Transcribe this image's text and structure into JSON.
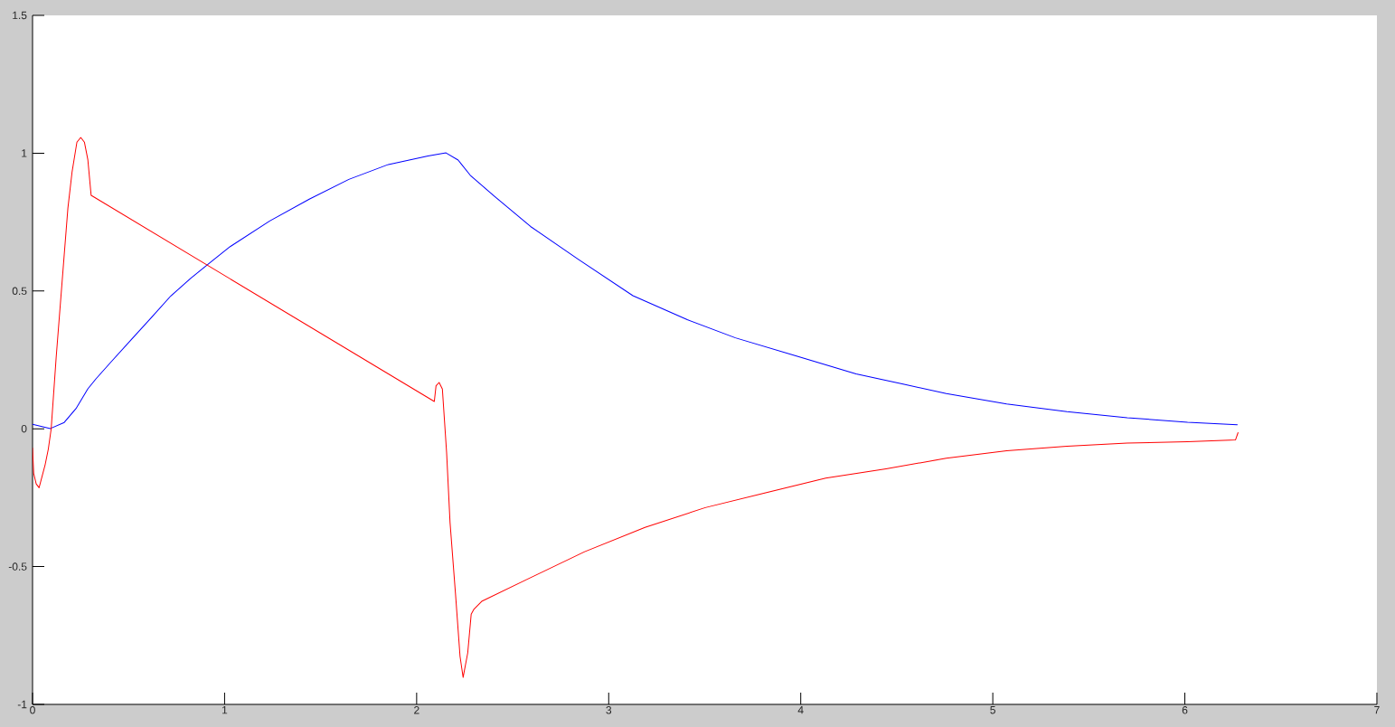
{
  "chart_data": {
    "type": "line",
    "xlim": [
      0,
      7
    ],
    "ylim": [
      -1,
      1.5
    ],
    "xticks": [
      0,
      1,
      2,
      3,
      4,
      5,
      6,
      7
    ],
    "yticks": [
      -1,
      -0.5,
      0,
      0.5,
      1,
      1.5
    ],
    "series": [
      {
        "color": "#0000ff",
        "x": [
          0,
          0.093,
          0.165,
          0.226,
          0.288,
          0.33,
          0.412,
          0.515,
          0.618,
          0.72,
          0.823,
          0.926,
          1.029,
          1.235,
          1.441,
          1.647,
          1.853,
          2.059,
          2.153,
          2.216,
          2.279,
          2.404,
          2.593,
          2.844,
          3.126,
          3.409,
          3.66,
          3.974,
          4.288,
          4.533,
          4.758,
          5.072,
          5.386,
          5.7,
          6.014,
          6.273
        ],
        "values": [
          0.016,
          0.001,
          0.023,
          0.073,
          0.145,
          0.181,
          0.245,
          0.324,
          0.403,
          0.482,
          0.546,
          0.604,
          0.661,
          0.754,
          0.833,
          0.905,
          0.959,
          0.99,
          1.001,
          0.975,
          0.92,
          0.844,
          0.734,
          0.614,
          0.483,
          0.396,
          0.33,
          0.265,
          0.199,
          0.162,
          0.128,
          0.09,
          0.062,
          0.04,
          0.024,
          0.015
        ]
      },
      {
        "color": "#ff0000",
        "x": [
          0,
          0.006,
          0.019,
          0.034,
          0.066,
          0.082,
          0.097,
          0.123,
          0.165,
          0.184,
          0.206,
          0.231,
          0.251,
          0.27,
          0.288,
          0.305,
          2.092,
          2.101,
          2.117,
          2.134,
          2.156,
          2.174,
          2.202,
          2.226,
          2.242,
          2.266,
          2.284,
          2.299,
          2.341,
          2.561,
          2.875,
          3.189,
          3.503,
          3.817,
          4.13,
          4.444,
          4.758,
          5.072,
          5.386,
          5.7,
          6.014,
          6.234,
          6.264,
          6.277
        ],
        "values": [
          -0.07,
          -0.162,
          -0.2,
          -0.214,
          -0.129,
          -0.074,
          0.0,
          0.259,
          0.632,
          0.8,
          0.933,
          1.04,
          1.057,
          1.04,
          0.976,
          0.847,
          0.099,
          0.156,
          0.168,
          0.144,
          -0.086,
          -0.341,
          -0.596,
          -0.826,
          -0.902,
          -0.813,
          -0.673,
          -0.654,
          -0.625,
          -0.551,
          -0.446,
          -0.358,
          -0.286,
          -0.232,
          -0.179,
          -0.145,
          -0.107,
          -0.08,
          -0.063,
          -0.052,
          -0.047,
          -0.041,
          -0.04,
          -0.014
        ]
      }
    ]
  }
}
